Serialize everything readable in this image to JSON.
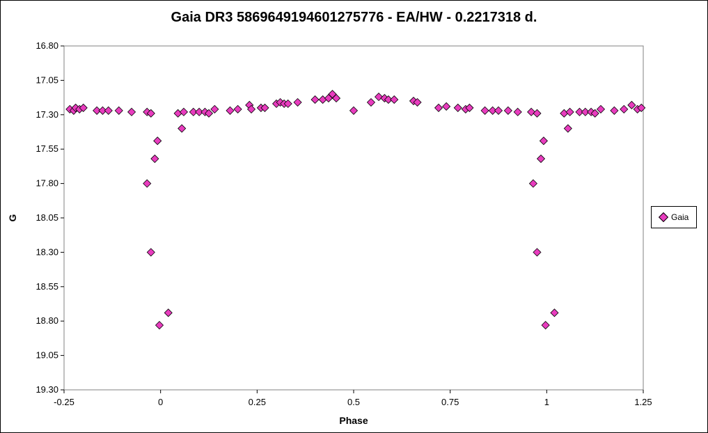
{
  "chart_data": {
    "type": "scatter",
    "title": "Gaia DR3 5869649194601275776  - EA/HW - 0.2217318  d.",
    "xlabel": "Phase",
    "ylabel": "G",
    "xlim": [
      -0.25,
      1.25
    ],
    "ylim": [
      16.8,
      19.3
    ],
    "y_inverted": true,
    "grid": false,
    "legend_position": "right",
    "xticks": [
      "-0.25",
      "0",
      "0.25",
      "0.5",
      "0.75",
      "1",
      "1.25"
    ],
    "yticks": [
      "16.80",
      "17.05",
      "17.30",
      "17.55",
      "17.80",
      "18.05",
      "18.30",
      "18.55",
      "18.80",
      "19.05",
      "19.30"
    ],
    "marker_color": "#e83cbe",
    "series": [
      {
        "name": "Gaia",
        "points": [
          [
            -0.235,
            17.26
          ],
          [
            -0.225,
            17.27
          ],
          [
            -0.22,
            17.25
          ],
          [
            -0.21,
            17.26
          ],
          [
            -0.2,
            17.25
          ],
          [
            -0.165,
            17.27
          ],
          [
            -0.15,
            17.27
          ],
          [
            -0.135,
            17.27
          ],
          [
            -0.108,
            17.27
          ],
          [
            -0.075,
            17.28
          ],
          [
            -0.035,
            17.28
          ],
          [
            -0.025,
            17.29
          ],
          [
            -0.035,
            17.8
          ],
          [
            -0.025,
            18.3
          ],
          [
            -0.015,
            17.62
          ],
          [
            -0.008,
            17.49
          ],
          [
            -0.003,
            18.83
          ],
          [
            0.02,
            18.74
          ],
          [
            0.045,
            17.29
          ],
          [
            0.055,
            17.4
          ],
          [
            0.06,
            17.28
          ],
          [
            0.085,
            17.28
          ],
          [
            0.1,
            17.28
          ],
          [
            0.115,
            17.28
          ],
          [
            0.125,
            17.29
          ],
          [
            0.14,
            17.26
          ],
          [
            0.18,
            17.27
          ],
          [
            0.2,
            17.26
          ],
          [
            0.23,
            17.23
          ],
          [
            0.235,
            17.26
          ],
          [
            0.26,
            17.25
          ],
          [
            0.27,
            17.25
          ],
          [
            0.3,
            17.22
          ],
          [
            0.31,
            17.21
          ],
          [
            0.32,
            17.22
          ],
          [
            0.33,
            17.22
          ],
          [
            0.355,
            17.21
          ],
          [
            0.4,
            17.19
          ],
          [
            0.42,
            17.19
          ],
          [
            0.435,
            17.18
          ],
          [
            0.445,
            17.15
          ],
          [
            0.455,
            17.18
          ],
          [
            0.5,
            17.27
          ],
          [
            0.545,
            17.21
          ],
          [
            0.565,
            17.17
          ],
          [
            0.58,
            17.18
          ],
          [
            0.59,
            17.19
          ],
          [
            0.605,
            17.19
          ],
          [
            0.655,
            17.2
          ],
          [
            0.665,
            17.21
          ],
          [
            0.72,
            17.25
          ],
          [
            0.74,
            17.24
          ],
          [
            0.77,
            17.25
          ],
          [
            0.79,
            17.26
          ],
          [
            0.8,
            17.25
          ],
          [
            0.84,
            17.27
          ],
          [
            0.86,
            17.27
          ],
          [
            0.875,
            17.27
          ],
          [
            0.9,
            17.27
          ],
          [
            0.925,
            17.28
          ],
          [
            0.96,
            17.28
          ],
          [
            0.975,
            17.29
          ],
          [
            0.965,
            17.8
          ],
          [
            0.975,
            18.3
          ],
          [
            0.985,
            17.62
          ],
          [
            0.992,
            17.49
          ],
          [
            0.997,
            18.83
          ],
          [
            1.02,
            18.74
          ],
          [
            1.045,
            17.29
          ],
          [
            1.055,
            17.4
          ],
          [
            1.06,
            17.28
          ],
          [
            1.085,
            17.28
          ],
          [
            1.1,
            17.28
          ],
          [
            1.115,
            17.28
          ],
          [
            1.125,
            17.29
          ],
          [
            1.14,
            17.26
          ],
          [
            1.175,
            17.27
          ],
          [
            1.2,
            17.26
          ],
          [
            1.22,
            17.23
          ],
          [
            1.235,
            17.26
          ],
          [
            1.245,
            17.25
          ]
        ]
      }
    ]
  },
  "legend": {
    "label": "Gaia"
  }
}
